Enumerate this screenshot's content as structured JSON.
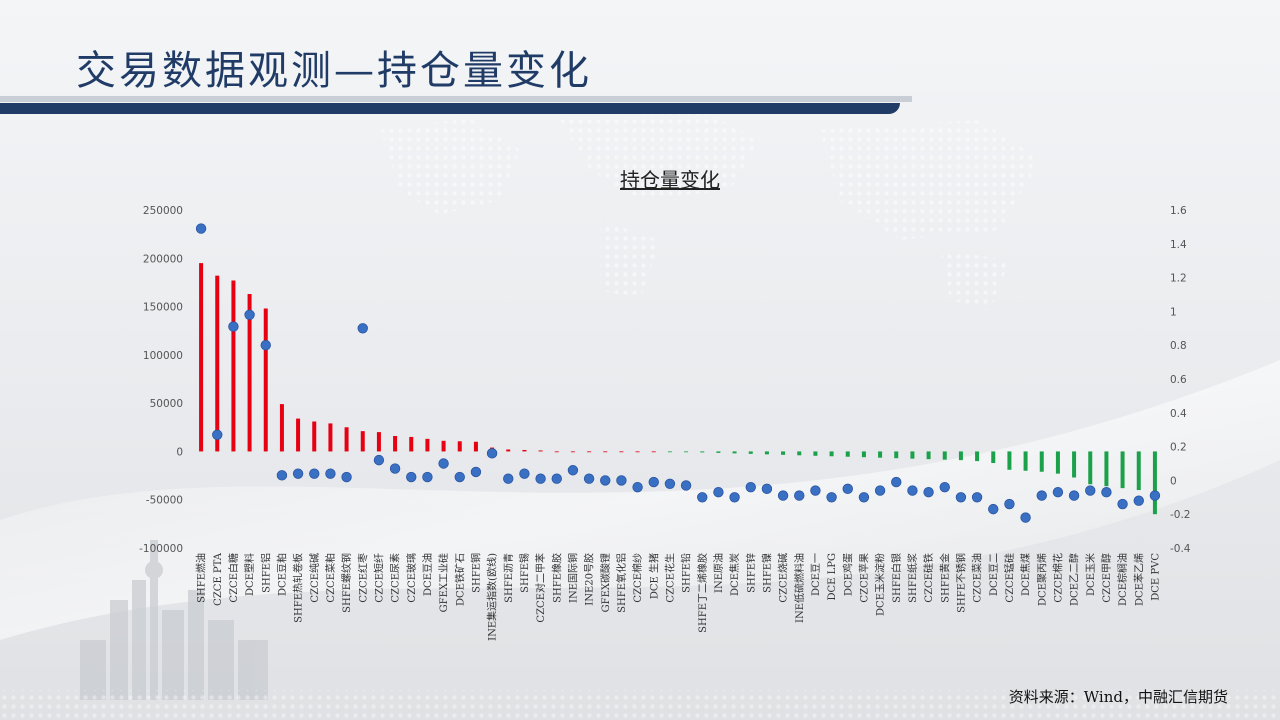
{
  "page": {
    "title": "交易数据观测—持仓量变化",
    "source": "资料来源：Wind，中融汇信期货"
  },
  "colors": {
    "title": "#1f3b66",
    "bar_positive": "#e60012",
    "bar_negative": "#1aa14a",
    "dot": "#3a70c4"
  },
  "chart_data": {
    "type": "bar",
    "title": "持仓量变化",
    "categories": [
      "SHFE燃油",
      "CZCE PTA",
      "CZCE白糖",
      "DCE塑料",
      "SHFE铝",
      "DCE豆粕",
      "SHFE热轧卷板",
      "CZCE纯碱",
      "CZCE菜粕",
      "SHFE螺纹钢",
      "CZCE红枣",
      "CZCE短纤",
      "CZCE尿素",
      "CZCE玻璃",
      "DCE豆油",
      "GFEX工业硅",
      "DCE铁矿石",
      "SHFE铜",
      "INE集运指数(欧线)",
      "SHFE沥青",
      "SHFE锡",
      "CZCE对二甲苯",
      "SHFE橡胶",
      "INE国际铜",
      "INE20号胶",
      "GFEX碳酸锂",
      "SHFE氧化铝",
      "CZCE棉纱",
      "DCE 生猪",
      "CZCE花生",
      "SHFE铅",
      "SHFE丁二烯橡胶",
      "INE原油",
      "DCE焦炭",
      "SHFE锌",
      "SHFE镍",
      "CZCE烧碱",
      "INE低硫燃料油",
      "DCE豆一",
      "DCE LPG",
      "DCE鸡蛋",
      "CZCE苹果",
      "DCE玉米淀粉",
      "SHFE白银",
      "SHFE纸浆",
      "CZCE硅铁",
      "SHFE黄金",
      "SHFE不锈钢",
      "CZCE菜油",
      "DCE豆二",
      "CZCE锰硅",
      "DCE焦煤",
      "DCE聚丙烯",
      "CZCE棉花",
      "DCE乙二醇",
      "DCE玉米",
      "CZCE甲醇",
      "DCE棕榈油",
      "DCE苯乙烯",
      "DCE PVC"
    ],
    "series": [
      {
        "axis": "left",
        "type": "bar",
        "values": [
          195000,
          182000,
          177000,
          163000,
          148000,
          49000,
          34000,
          31000,
          29000,
          25000,
          21000,
          20000,
          16000,
          15000,
          13000,
          11000,
          10500,
          10000,
          4000,
          2000,
          1500,
          1000,
          0,
          0,
          0,
          0,
          0,
          0,
          0,
          -500,
          -800,
          -1000,
          -1500,
          -2000,
          -2500,
          -3000,
          -3500,
          -4000,
          -4500,
          -5000,
          -5500,
          -6000,
          -6500,
          -7000,
          -7500,
          -8000,
          -8500,
          -9000,
          -10000,
          -12000,
          -19000,
          -20000,
          -21000,
          -23000,
          -27000,
          -34000,
          -36000,
          -38000,
          -40000,
          -65000
        ]
      },
      {
        "axis": "right",
        "type": "scatter",
        "values": [
          1.49,
          0.27,
          0.91,
          0.98,
          0.8,
          0.03,
          0.04,
          0.04,
          0.04,
          0.02,
          0.9,
          0.12,
          0.07,
          0.02,
          0.02,
          0.1,
          0.02,
          0.05,
          0.16,
          0.01,
          0.04,
          0.01,
          0.01,
          0.06,
          0.01,
          0.0,
          0.0,
          -0.04,
          -0.01,
          -0.02,
          -0.03,
          -0.1,
          -0.07,
          -0.1,
          -0.04,
          -0.05,
          -0.09,
          -0.09,
          -0.06,
          -0.1,
          -0.05,
          -0.1,
          -0.06,
          -0.01,
          -0.06,
          -0.07,
          -0.04,
          -0.1,
          -0.1,
          -0.17,
          -0.14,
          -0.22,
          -0.09,
          -0.07,
          -0.09,
          -0.06,
          -0.07,
          -0.14,
          -0.12,
          -0.09
        ]
      }
    ],
    "ylim_left": [
      -100000,
      250000
    ],
    "yticks_left": [
      "250000",
      "200000",
      "150000",
      "100000",
      "50000",
      "0",
      "-50000",
      "-100000"
    ],
    "ylim_right": [
      -0.4,
      1.6
    ],
    "yticks_right": [
      "1.6",
      "1.4",
      "1.2",
      "1",
      "0.8",
      "0.6",
      "0.4",
      "0.2",
      "0",
      "-0.2",
      "-0.4"
    ],
    "grid": false,
    "legend": "none"
  }
}
